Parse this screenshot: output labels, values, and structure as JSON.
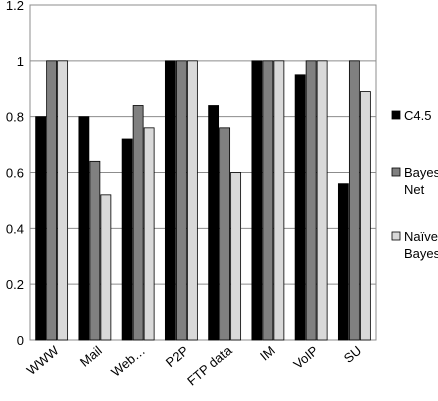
{
  "chart_data": {
    "type": "bar",
    "title": "",
    "xlabel": "",
    "ylabel": "",
    "categories": [
      "WWW",
      "Mail",
      "Web…",
      "P2P",
      "FTP data",
      "IM",
      "VoIP",
      "SU"
    ],
    "series": [
      {
        "name": "C4.5",
        "color": "#000000",
        "values": [
          0.8,
          0.8,
          0.72,
          1.0,
          0.84,
          1.0,
          0.95,
          0.56
        ]
      },
      {
        "name": "Bayes Net",
        "color": "#808080",
        "values": [
          1.0,
          0.64,
          0.84,
          1.0,
          0.76,
          1.0,
          1.0,
          1.0
        ]
      },
      {
        "name": "Naïve Bayes",
        "color": "#d9d9d9",
        "values": [
          1.0,
          0.52,
          0.76,
          1.0,
          0.6,
          1.0,
          1.0,
          0.89
        ]
      }
    ],
    "legend": {
      "placement": "right",
      "entries": [
        {
          "lines": [
            "C4.5"
          ]
        },
        {
          "lines": [
            "Bayes",
            "Net"
          ]
        },
        {
          "lines": [
            "Naïve",
            "Bayes"
          ]
        }
      ]
    },
    "ylim": [
      0,
      1.2
    ],
    "yticks": [
      0,
      0.2,
      0.4,
      0.6,
      0.8,
      1,
      1.2
    ],
    "ytick_labels": [
      "0",
      "0.2",
      "0.4",
      "0.6",
      "0.8",
      "1",
      "1.2"
    ],
    "grid": "horizontal"
  }
}
